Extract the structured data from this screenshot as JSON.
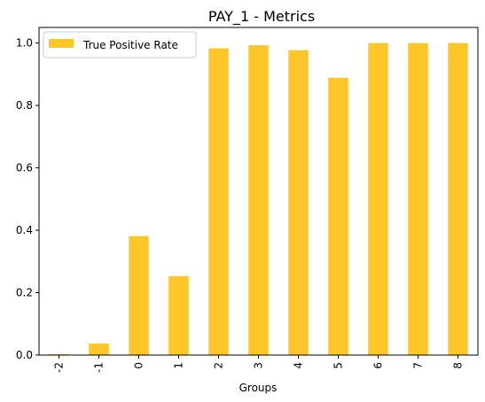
{
  "chart_data": {
    "type": "bar",
    "title": "PAY_1 - Metrics",
    "xlabel": "Groups",
    "ylabel": "",
    "categories": [
      "-2",
      "-1",
      "0",
      "1",
      "2",
      "3",
      "4",
      "5",
      "6",
      "7",
      "8"
    ],
    "series": [
      {
        "name": "True Positive Rate",
        "values": [
          0.003,
          0.037,
          0.381,
          0.253,
          0.983,
          0.993,
          0.977,
          0.889,
          1.0,
          1.0,
          1.0
        ]
      }
    ],
    "ylim": [
      0,
      1.05
    ],
    "yticks": [
      "0.0",
      "0.2",
      "0.4",
      "0.6",
      "0.8",
      "1.0"
    ],
    "grid": false,
    "legend_position": "top-left",
    "colors": {
      "bar": "#fec727",
      "axis": "#000000",
      "legend_border": "#cccccc"
    }
  }
}
